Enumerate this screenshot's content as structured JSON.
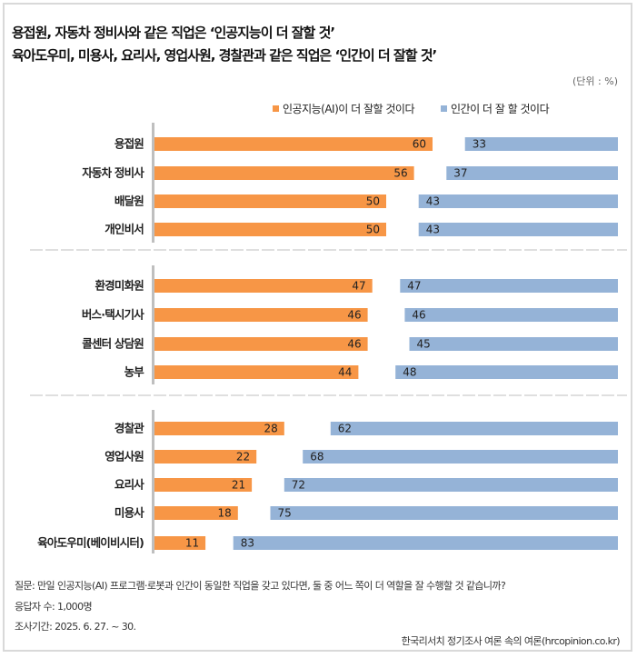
{
  "title_lines": [
    "용접원, 자동차 정비사와 같은 직업은 ‘인공지능이 더 잘할 것’",
    "육아도우미, 미용사, 요리사, 영업사원, 경찰관과 같은 직업은 ‘인간이 더 잘할 것’"
  ],
  "unit": "(단위 : %)",
  "colors": {
    "ai": "#F79646",
    "human": "#95B3D7"
  },
  "chart_data": {
    "type": "bar",
    "stacked": true,
    "orientation": "horizontal",
    "xlim": [
      0,
      100
    ],
    "legend": [
      "인공지능(AI)이 더 잘할 것이다",
      "인간이 더 잘 할 것이다"
    ],
    "legend_position": "top-right",
    "groups": [
      [
        "용접원",
        "자동차 정비사",
        "배달원",
        "개인비서"
      ],
      [
        "환경미화원",
        "버스·택시기사",
        "콜센터 상담원",
        "농부"
      ],
      [
        "경찰관",
        "영업사원",
        "요리사",
        "미용사",
        "육아도우미(베이비시터)"
      ]
    ],
    "categories": [
      "용접원",
      "자동차 정비사",
      "배달원",
      "개인비서",
      "환경미화원",
      "버스·택시기사",
      "콜센터 상담원",
      "농부",
      "경찰관",
      "영업사원",
      "요리사",
      "미용사",
      "육아도우미(베이비시터)"
    ],
    "series": [
      {
        "name": "인공지능(AI)이 더 잘할 것이다",
        "values": [
          60,
          56,
          50,
          50,
          47,
          46,
          46,
          44,
          28,
          22,
          21,
          18,
          11
        ]
      },
      {
        "name": "인간이 더 잘 할 것이다",
        "values": [
          33,
          37,
          43,
          43,
          47,
          46,
          45,
          48,
          62,
          68,
          72,
          75,
          83
        ]
      }
    ]
  },
  "footer": {
    "question": "질문: 만일 인공지능(AI) 프로그램·로봇과 인간이 동일한 직업을 갖고 있다면, 둘 중 어느 쪽이 더 역할을 잘 수행할 것 같습니까?",
    "respondents": "응답자 수: 1,000명",
    "period": "조사기간: 2025. 6. 27. ~ 30.",
    "source": "한국리서치 정기조사 여론 속의 여론(hrcopinion.co.kr)"
  }
}
